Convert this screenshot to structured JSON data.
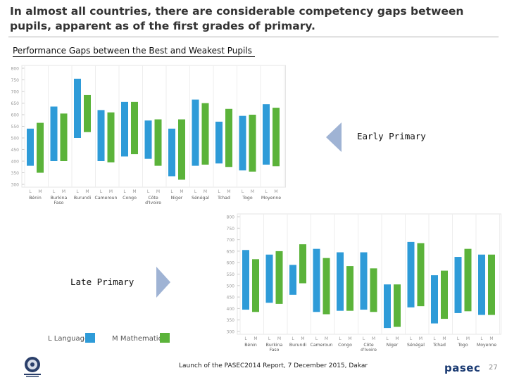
{
  "slide": {
    "title": "In almost all countries, there are considerable competency gaps between pupils, apparent as of the first grades of primary.",
    "subtitle": "Performance Gaps between the Best and Weakest Pupils",
    "early_label": "Early Primary",
    "late_label": "Late Primary",
    "footer": "Launch of the PASEC2014 Report, 7 December 2015, Dakar",
    "brand": "pasec",
    "page_number": "27"
  },
  "legend": {
    "items": [
      {
        "letter": "L",
        "label": "Language",
        "color": "#2e9bd8"
      },
      {
        "letter": "M",
        "label": "Mathematics",
        "color": "#5bb33a"
      }
    ]
  },
  "chart_data": [
    {
      "type": "bar",
      "subtype": "floating-range",
      "title": "Early Primary",
      "categories": [
        "Bénin",
        "Burkina Faso",
        "Burundi",
        "Cameroun",
        "Congo",
        "Côte d'Ivoire",
        "Niger",
        "Sénégal",
        "Tchad",
        "Togo",
        "Moyenne"
      ],
      "series": [
        {
          "name": "L",
          "color": "#2e9bd8",
          "low": [
            380,
            400,
            500,
            400,
            420,
            410,
            335,
            380,
            390,
            360,
            385
          ],
          "high": [
            540,
            635,
            755,
            620,
            655,
            575,
            540,
            665,
            570,
            595,
            645
          ]
        },
        {
          "name": "M",
          "color": "#5bb33a",
          "low": [
            350,
            400,
            525,
            395,
            430,
            380,
            320,
            385,
            375,
            355,
            378
          ],
          "high": [
            565,
            605,
            685,
            610,
            655,
            580,
            580,
            650,
            625,
            600,
            630
          ]
        }
      ],
      "ylim": [
        300,
        800
      ],
      "yticks": [
        300,
        350,
        400,
        450,
        500,
        550,
        600,
        650,
        700,
        750,
        800
      ]
    },
    {
      "type": "bar",
      "subtype": "floating-range",
      "title": "Late Primary",
      "categories": [
        "Bénin",
        "Burkina Faso",
        "Burundi",
        "Cameroun",
        "Congo",
        "Côte d'Ivoire",
        "Niger",
        "Sénégal",
        "Tchad",
        "Togo",
        "Moyenne"
      ],
      "series": [
        {
          "name": "L",
          "color": "#2e9bd8",
          "low": [
            395,
            425,
            460,
            385,
            390,
            395,
            315,
            405,
            335,
            380,
            372
          ],
          "high": [
            655,
            635,
            590,
            660,
            645,
            645,
            505,
            690,
            545,
            625,
            635
          ]
        },
        {
          "name": "M",
          "color": "#5bb33a",
          "low": [
            385,
            420,
            510,
            375,
            390,
            385,
            320,
            410,
            355,
            388,
            372
          ],
          "high": [
            615,
            650,
            680,
            620,
            585,
            575,
            505,
            685,
            565,
            660,
            635
          ]
        }
      ],
      "ylim": [
        300,
        800
      ],
      "yticks": [
        300,
        350,
        400,
        450,
        500,
        550,
        600,
        650,
        700,
        750,
        800
      ]
    }
  ]
}
